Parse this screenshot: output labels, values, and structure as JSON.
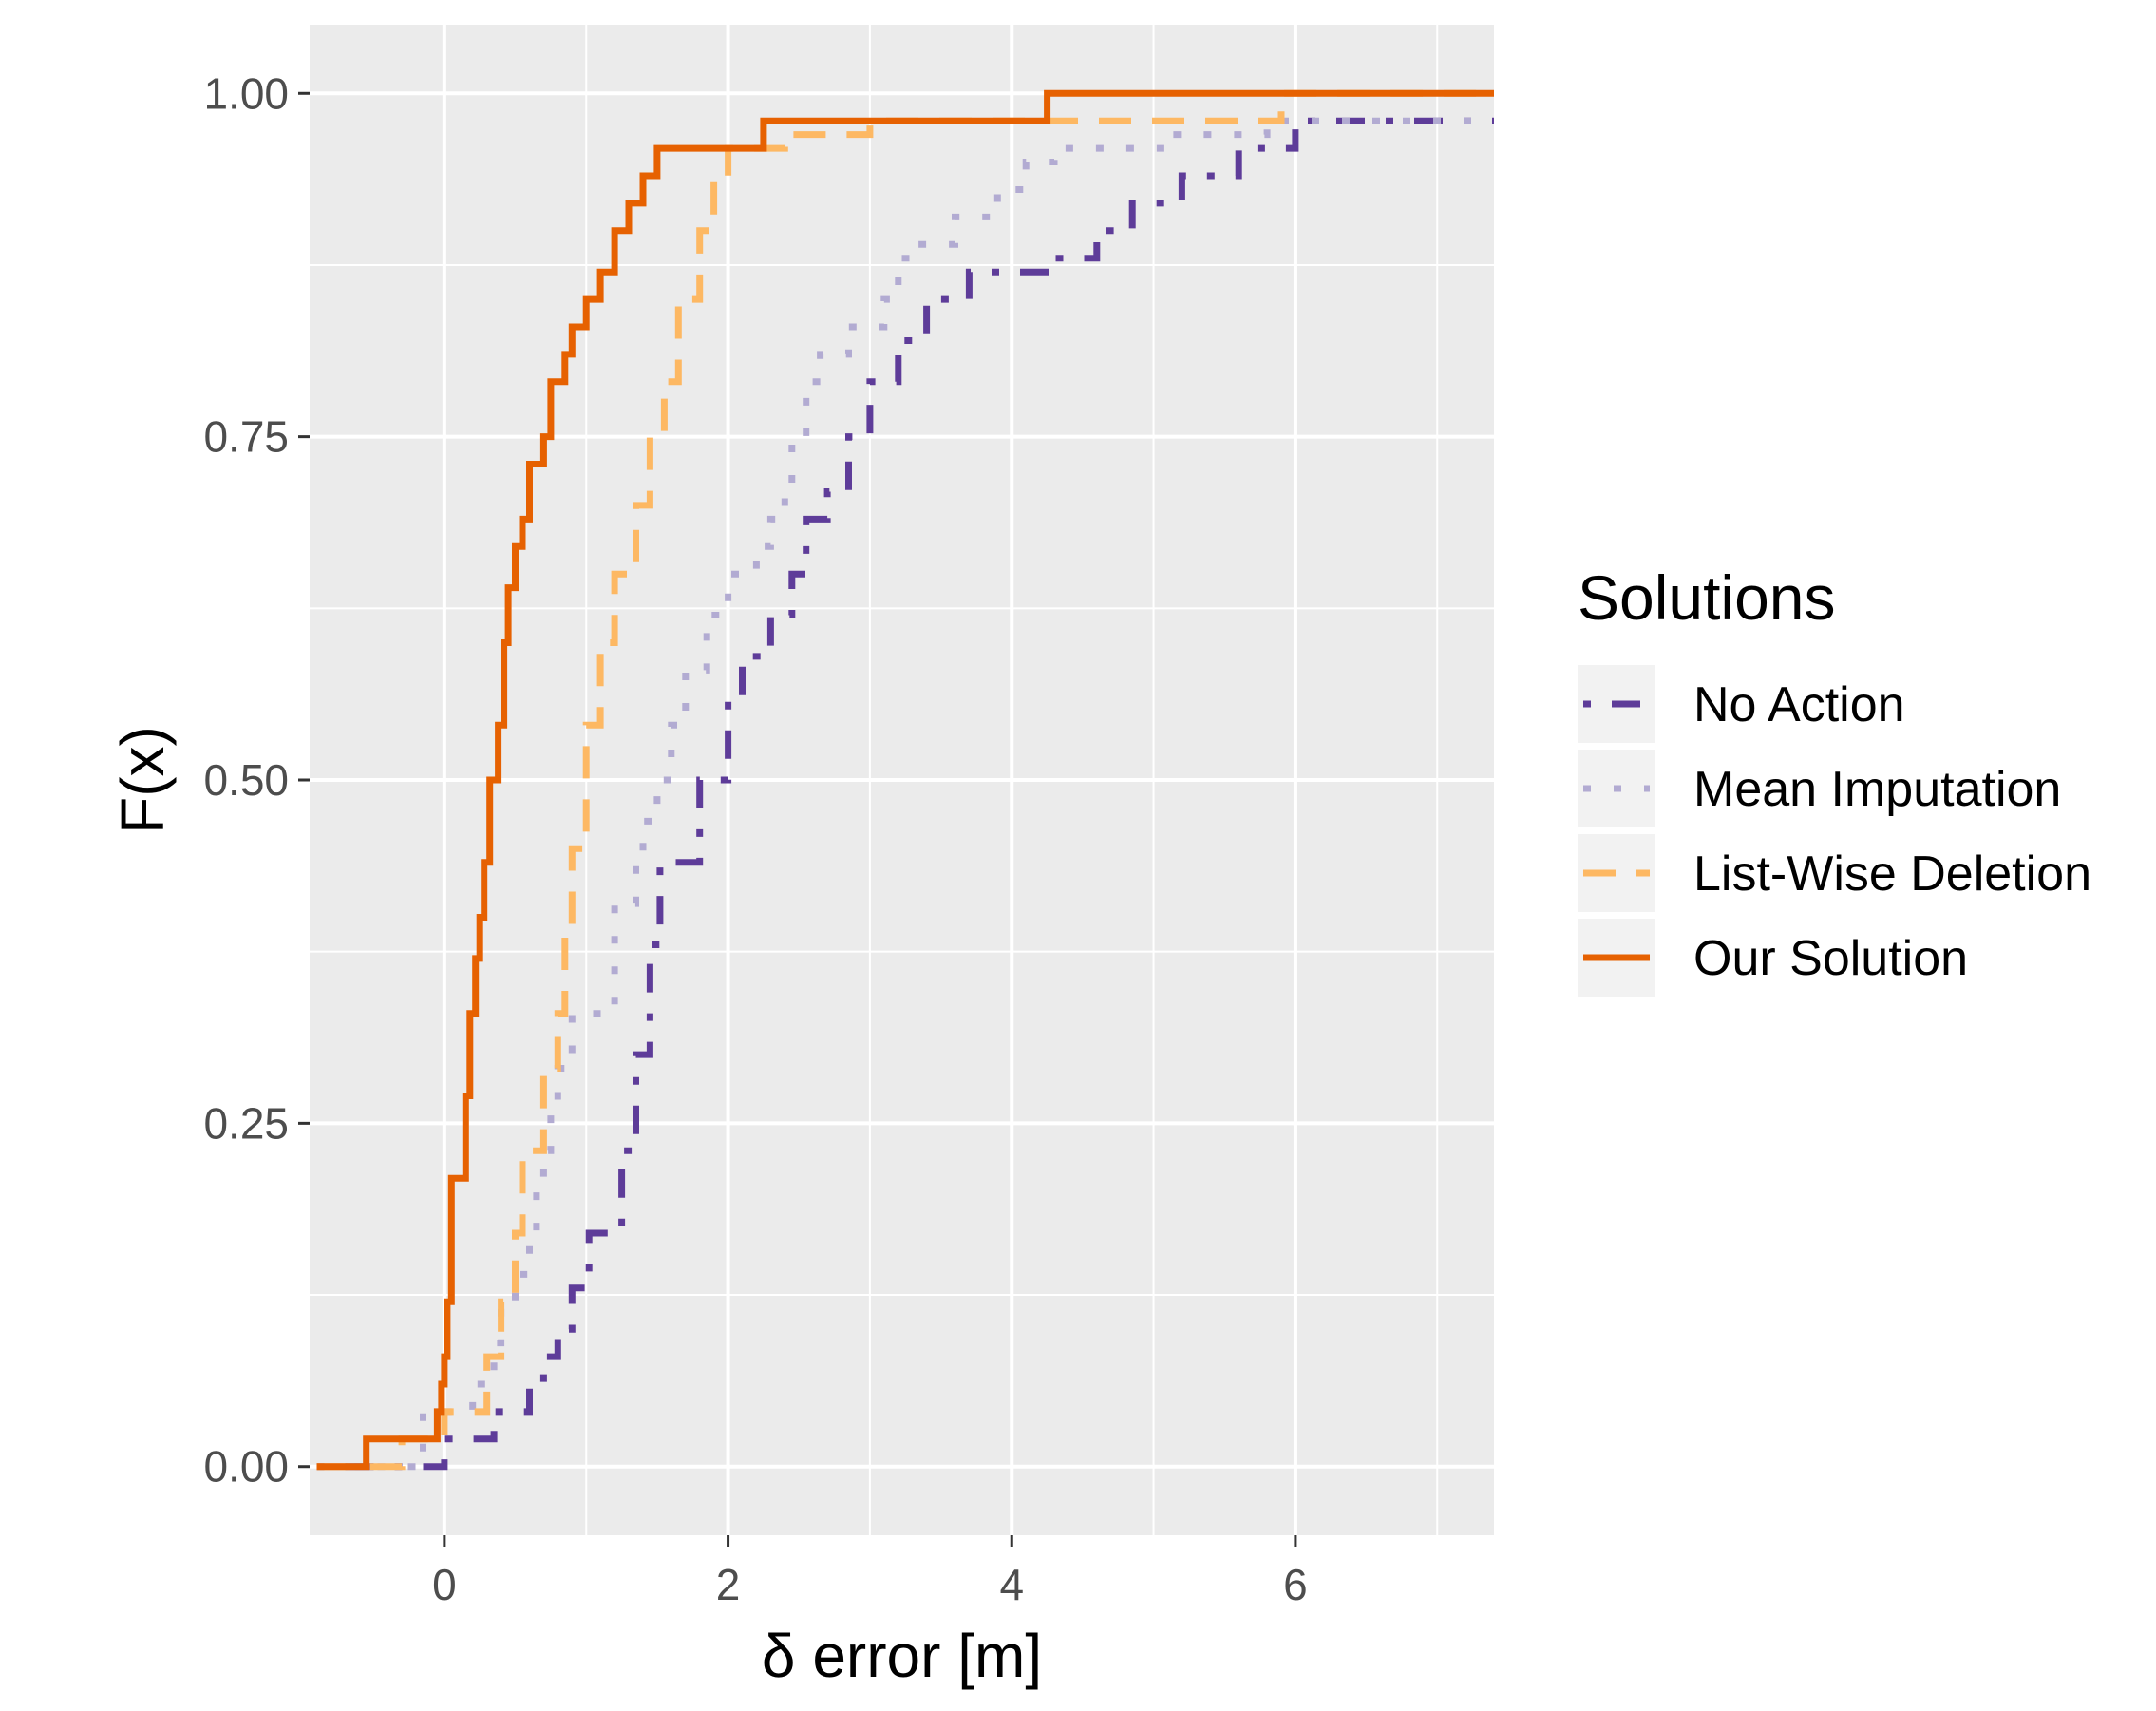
{
  "chart_data": {
    "type": "line",
    "subtype": "ecdf-step",
    "title": "",
    "xlabel": "δ error [m]",
    "ylabel": "F(x)",
    "xlim": [
      -0.95,
      7.4
    ],
    "ylim": [
      -0.05,
      1.05
    ],
    "x_ticks": [
      0,
      2,
      4,
      6
    ],
    "x_tick_labels": [
      "0",
      "2",
      "4",
      "6"
    ],
    "y_ticks": [
      0,
      0.25,
      0.5,
      0.75,
      1
    ],
    "y_tick_labels": [
      "0.00",
      "0.25",
      "0.50",
      "0.75",
      "1.00"
    ],
    "grid": true,
    "panel_background": "#ebebeb",
    "legend": {
      "title": "Solutions",
      "position": "right"
    },
    "series": [
      {
        "name": "No Action",
        "color": "#5e3c99",
        "line_style": "dotdash",
        "x": [
          -0.9,
          0.0,
          0.35,
          0.6,
          0.7,
          0.8,
          0.9,
          1.02,
          1.25,
          1.35,
          1.45,
          1.52,
          1.8,
          2.0,
          2.1,
          2.3,
          2.45,
          2.55,
          2.7,
          2.85,
          3.0,
          3.2,
          3.4,
          3.7,
          4.3,
          4.6,
          4.85,
          5.2,
          5.6,
          6.0,
          7.1,
          7.4
        ],
        "y": [
          0.0,
          0.02,
          0.04,
          0.06,
          0.08,
          0.1,
          0.13,
          0.17,
          0.23,
          0.3,
          0.38,
          0.44,
          0.5,
          0.56,
          0.59,
          0.62,
          0.65,
          0.69,
          0.71,
          0.75,
          0.79,
          0.82,
          0.85,
          0.87,
          0.88,
          0.9,
          0.92,
          0.94,
          0.96,
          0.98,
          0.98,
          0.98
        ]
      },
      {
        "name": "Mean Imputation",
        "color": "#b2abd2",
        "line_style": "dotted",
        "x": [
          -0.9,
          -0.15,
          0.1,
          0.2,
          0.35,
          0.4,
          0.5,
          0.6,
          0.65,
          0.7,
          0.75,
          0.8,
          0.9,
          1.2,
          1.35,
          1.4,
          1.5,
          1.6,
          1.7,
          1.85,
          2.0,
          2.2,
          2.3,
          2.4,
          2.45,
          2.55,
          2.65,
          2.85,
          3.1,
          3.2,
          3.3,
          3.6,
          3.9,
          4.1,
          4.3,
          4.7,
          5.1,
          5.8,
          6.5,
          7.4
        ],
        "y": [
          0.0,
          0.04,
          0.04,
          0.06,
          0.09,
          0.12,
          0.14,
          0.17,
          0.2,
          0.23,
          0.26,
          0.29,
          0.33,
          0.41,
          0.44,
          0.47,
          0.5,
          0.54,
          0.58,
          0.62,
          0.65,
          0.67,
          0.69,
          0.71,
          0.75,
          0.79,
          0.81,
          0.83,
          0.85,
          0.88,
          0.89,
          0.91,
          0.93,
          0.95,
          0.96,
          0.96,
          0.97,
          0.98,
          0.98,
          0.98
        ]
      },
      {
        "name": "List-Wise Deletion",
        "color": "#fdb863",
        "line_style": "dashed",
        "x": [
          -0.9,
          -0.3,
          0.0,
          0.3,
          0.4,
          0.5,
          0.55,
          0.7,
          0.8,
          0.85,
          0.9,
          1.0,
          1.1,
          1.2,
          1.35,
          1.45,
          1.55,
          1.65,
          1.8,
          1.9,
          2.0,
          2.2,
          2.4,
          3.0,
          5.9,
          7.4
        ],
        "y": [
          0.0,
          0.02,
          0.04,
          0.08,
          0.12,
          0.17,
          0.23,
          0.29,
          0.33,
          0.39,
          0.45,
          0.54,
          0.6,
          0.65,
          0.7,
          0.75,
          0.79,
          0.85,
          0.9,
          0.94,
          0.96,
          0.96,
          0.97,
          0.98,
          1.0,
          1.0
        ]
      },
      {
        "name": "Our Solution",
        "color": "#e66101",
        "line_style": "solid",
        "x": [
          -0.9,
          -0.55,
          -0.1,
          -0.05,
          -0.02,
          0.0,
          0.02,
          0.05,
          0.15,
          0.18,
          0.22,
          0.25,
          0.28,
          0.32,
          0.38,
          0.42,
          0.45,
          0.5,
          0.55,
          0.6,
          0.7,
          0.75,
          0.85,
          0.9,
          1.0,
          1.1,
          1.2,
          1.3,
          1.4,
          1.5,
          1.6,
          1.8,
          2.25,
          4.25,
          7.4
        ],
        "y": [
          0.0,
          0.02,
          0.02,
          0.04,
          0.06,
          0.08,
          0.12,
          0.21,
          0.27,
          0.33,
          0.37,
          0.4,
          0.44,
          0.5,
          0.54,
          0.6,
          0.64,
          0.67,
          0.69,
          0.73,
          0.75,
          0.79,
          0.81,
          0.83,
          0.85,
          0.87,
          0.9,
          0.92,
          0.94,
          0.96,
          0.96,
          0.96,
          0.98,
          1.0,
          1.0
        ]
      }
    ]
  }
}
